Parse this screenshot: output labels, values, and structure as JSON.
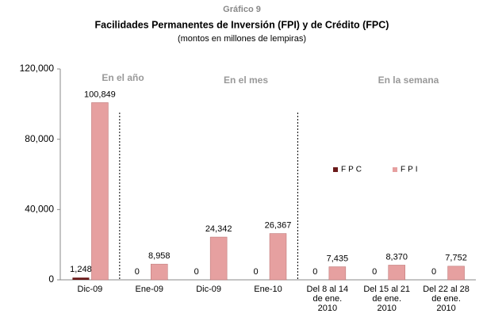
{
  "chart_data": {
    "type": "bar",
    "title": "Gráfico 9",
    "subtitle": "Facilidades Permanentes  de Inversión (FPI) y de Crédito (FPC)",
    "note": "(montos en millones de lempiras)",
    "annotations": [
      "En el año",
      "En el mes",
      "En la semana"
    ],
    "categories": [
      "Dic-09",
      "Ene-09",
      "Dic-09",
      "Ene-10",
      "Del 8 al 14\nde ene.\n2010",
      "Del 15 al 21\nde ene.\n2010",
      "Del 22 al 28\nde ene.\n2010"
    ],
    "series": [
      {
        "name": "FPC",
        "color": "#6b1a1a",
        "values": [
          1248,
          0,
          0,
          0,
          0,
          0,
          0
        ],
        "value_labels": [
          "1,248",
          "0",
          "0",
          "0",
          "0",
          "0",
          "0"
        ]
      },
      {
        "name": "FPI",
        "color": "#e6a0a0",
        "values": [
          100849,
          8958,
          24342,
          26367,
          7435,
          8370,
          7752
        ],
        "value_labels": [
          "100,849",
          "8,958",
          "24,342",
          "26,367",
          "7,435",
          "8,370",
          "7,752"
        ]
      }
    ],
    "ylim": [
      0,
      120000
    ],
    "yticks": [
      0,
      {
        "value": 40000,
        "label": "40,000"
      },
      {
        "value": 80000,
        "label": "80,000"
      },
      {
        "value": 120000,
        "label": "120,000"
      }
    ],
    "grid": false
  }
}
